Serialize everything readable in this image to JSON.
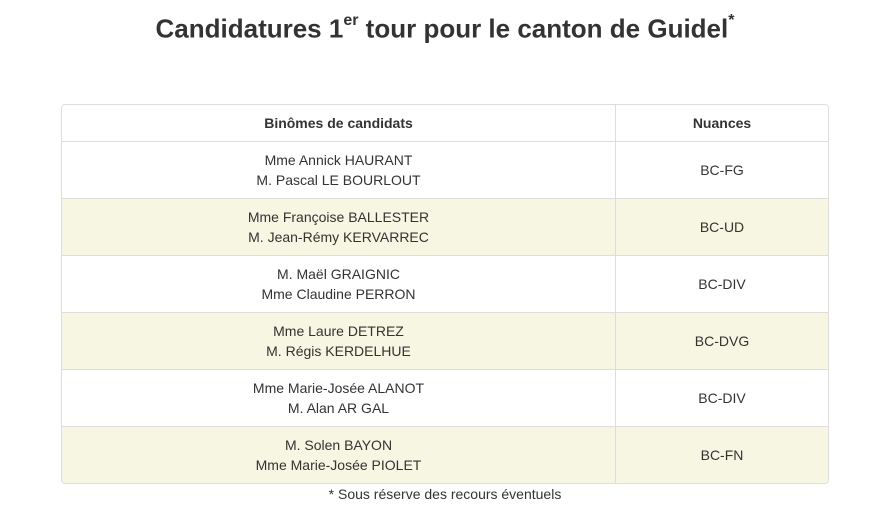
{
  "title": {
    "prefix": "Candidatures 1",
    "sup": "er",
    "suffix": " tour pour le canton de Guidel",
    "mark": "*"
  },
  "table": {
    "headers": {
      "names": "Binômes de candidats",
      "nuances": "Nuances"
    },
    "rows": [
      {
        "candidate_1": "Mme Annick HAURANT",
        "candidate_2": "M. Pascal LE BOURLOUT",
        "nuance": "BC-FG"
      },
      {
        "candidate_1": "Mme Françoise BALLESTER",
        "candidate_2": "M. Jean-Rémy KERVARREC",
        "nuance": "BC-UD"
      },
      {
        "candidate_1": "M. Maël GRAIGNIC",
        "candidate_2": "Mme Claudine PERRON",
        "nuance": "BC-DIV"
      },
      {
        "candidate_1": "Mme Laure DETREZ",
        "candidate_2": "M. Régis KERDELHUE",
        "nuance": "BC-DVG"
      },
      {
        "candidate_1": "Mme Marie-Josée ALANOT",
        "candidate_2": "M. Alan AR GAL",
        "nuance": "BC-DIV"
      },
      {
        "candidate_1": "M. Solen BAYON",
        "candidate_2": "Mme Marie-Josée PIOLET",
        "nuance": "BC-FN"
      }
    ]
  },
  "footnote": "* Sous réserve des recours éventuels",
  "colors": {
    "alt_row": "#f6f6e2",
    "border": "#dddddd",
    "text": "#333333"
  }
}
